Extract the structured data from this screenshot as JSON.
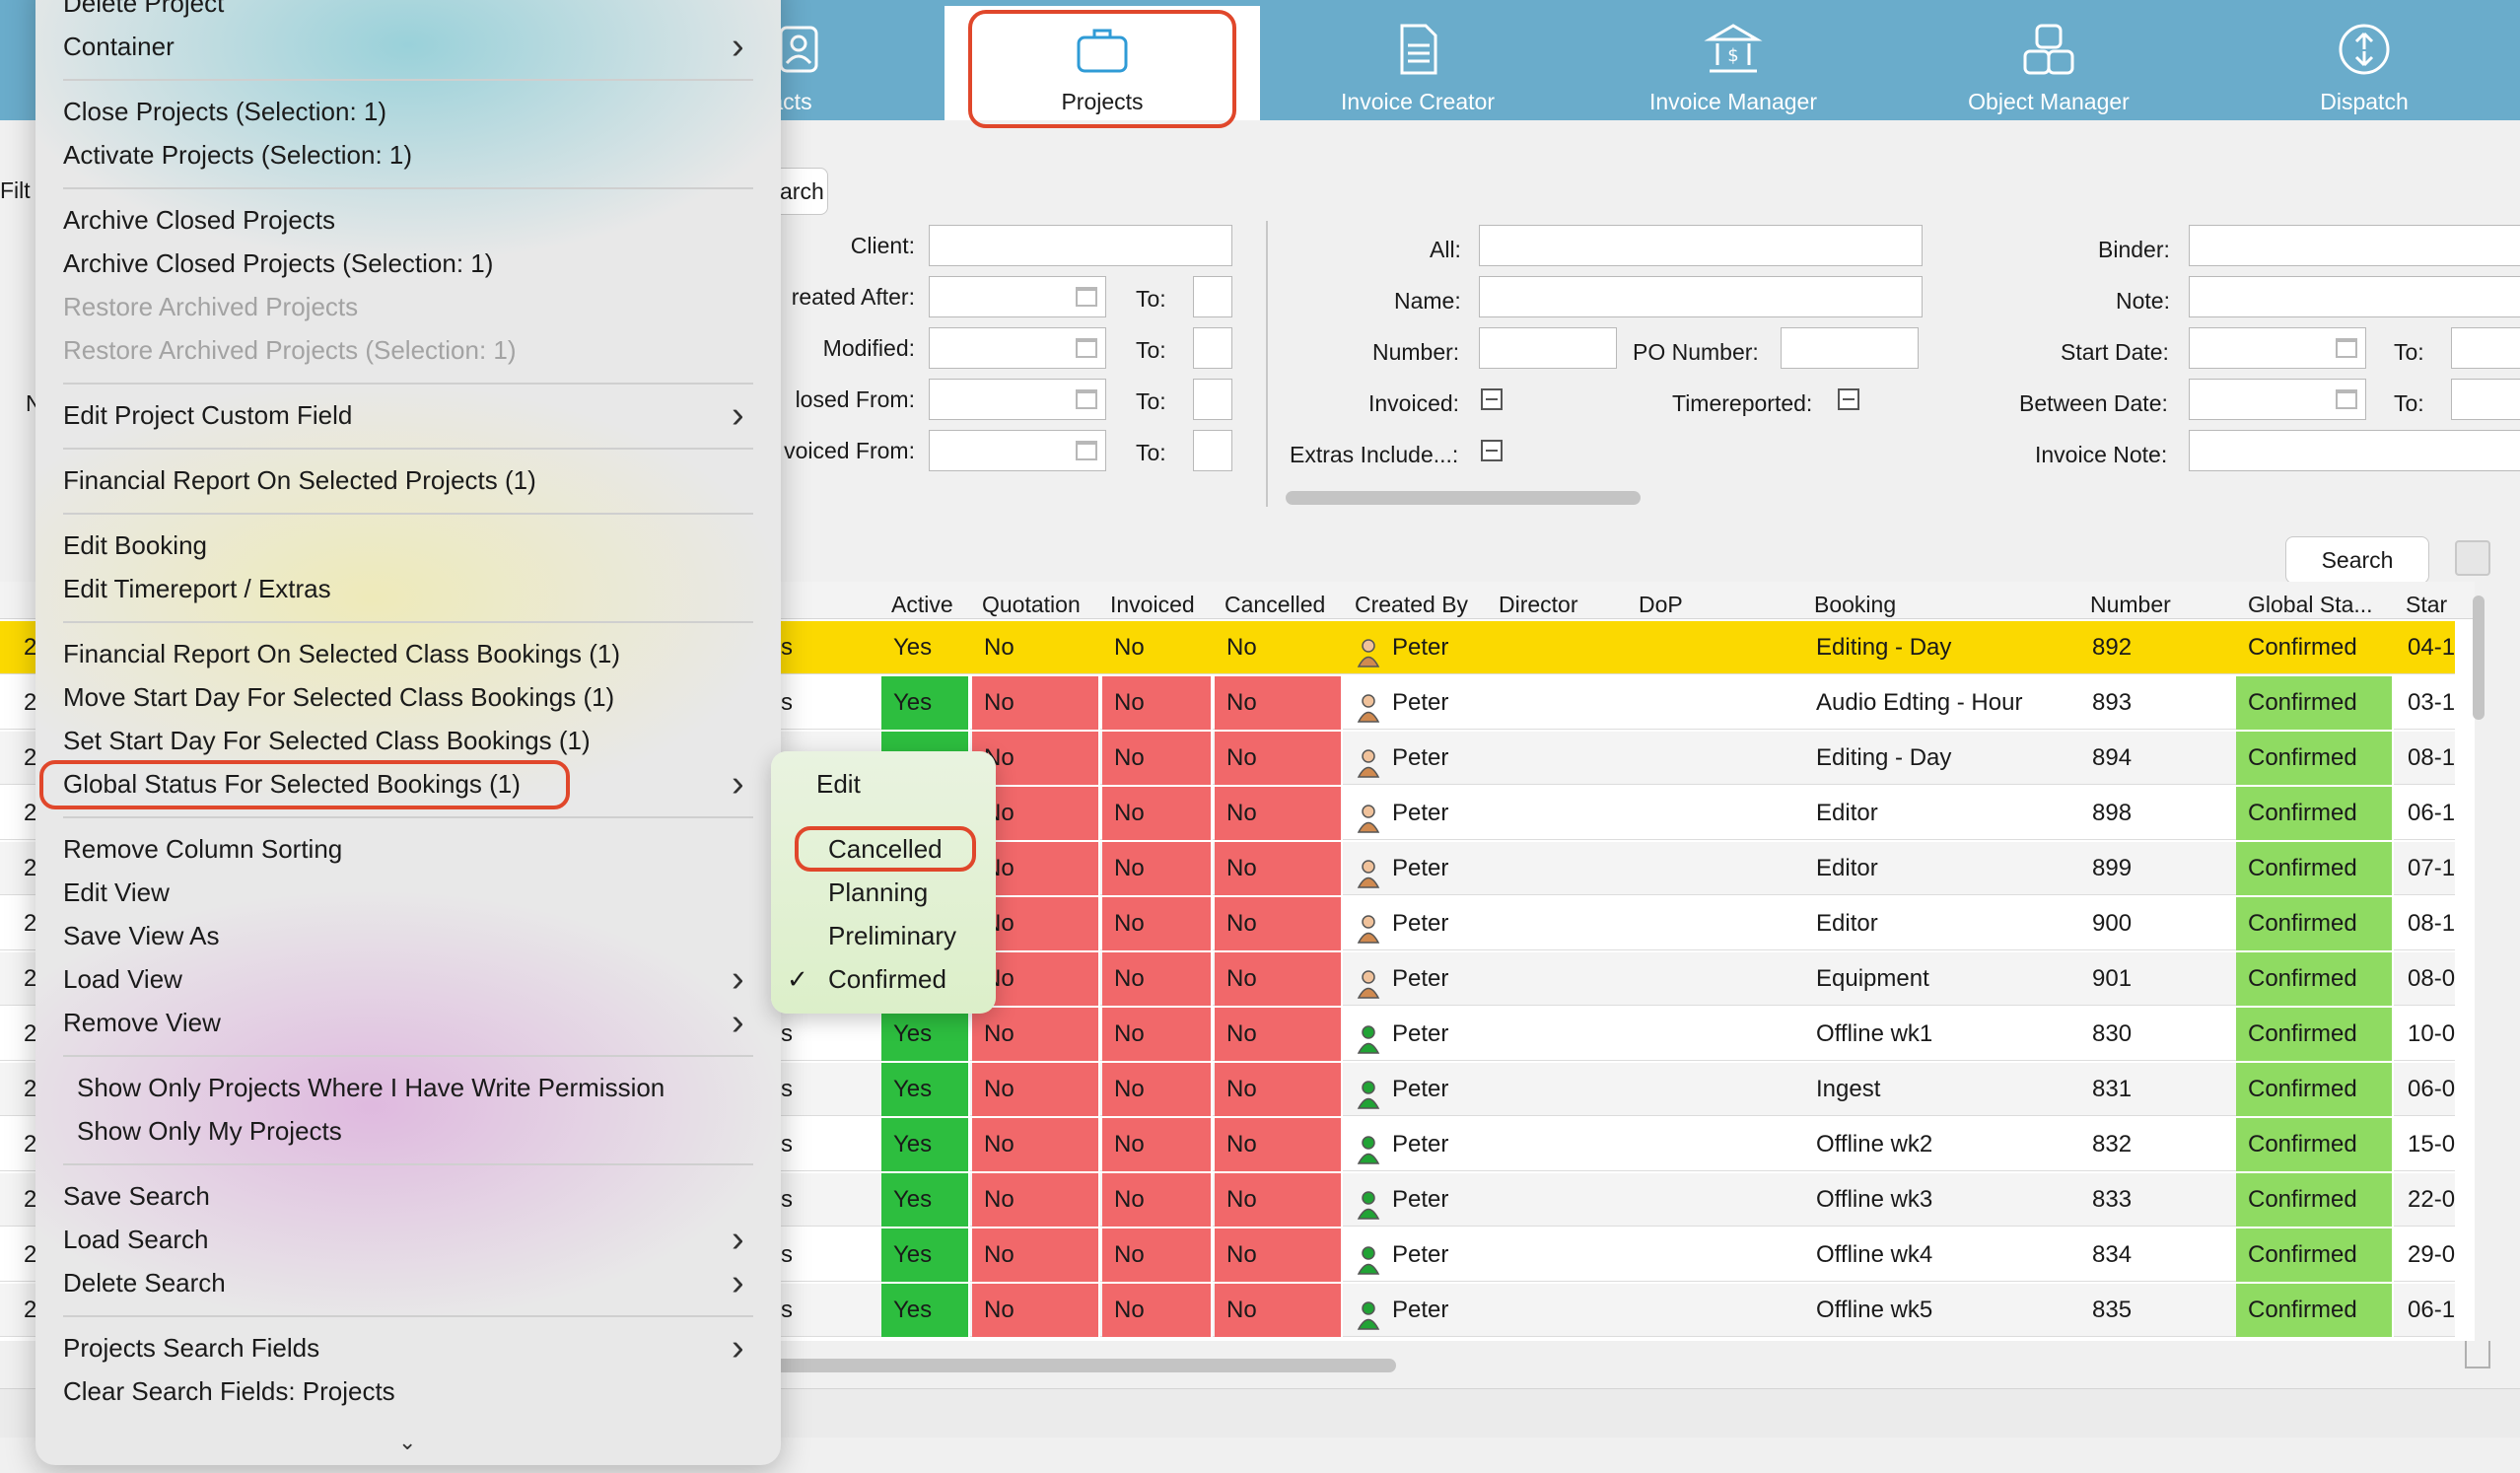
{
  "toolbar": {
    "tabs": [
      {
        "label": "tacts",
        "icon": "contacts-icon"
      },
      {
        "label": "Projects",
        "icon": "briefcase-icon",
        "active": true
      },
      {
        "label": "Invoice Creator",
        "icon": "document-icon"
      },
      {
        "label": "Invoice Manager",
        "icon": "bank-icon"
      },
      {
        "label": "Object Manager",
        "icon": "objects-icon"
      },
      {
        "label": "Dispatch",
        "icon": "dispatch-icon"
      }
    ]
  },
  "filters": {
    "filt_stub": "Filt",
    "arch_stub": "arch",
    "n_stub": "N",
    "left": [
      "Client:",
      "reated After:",
      "Modified:",
      "losed From:",
      "voiced From:"
    ],
    "to": "To:",
    "middle": {
      "all": "All:",
      "name": "Name:",
      "number": "Number:",
      "po_number": "PO Number:",
      "invoiced": "Invoiced:",
      "timereported": "Timereported:",
      "extras": "Extras Include...:"
    },
    "right": {
      "binder": "Binder:",
      "note": "Note:",
      "start_date": "Start Date:",
      "between_date": "Between Date:",
      "invoice_note": "Invoice Note:"
    },
    "search_button": "Search"
  },
  "table": {
    "headers": [
      "Active",
      "Quotation",
      "Invoiced",
      "Cancelled",
      "Created By",
      "Director",
      "DoP",
      "Booking",
      "Number",
      "Global Sta...",
      "Star"
    ],
    "rows": [
      {
        "lead": "2",
        "s": "s",
        "active": "Yes",
        "quotation": "No",
        "invoiced": "No",
        "cancelled": "No",
        "created_by": "Peter",
        "booking": "Editing - Day",
        "number": "892",
        "status": "Confirmed",
        "start": "04-1"
      },
      {
        "lead": "2",
        "s": "s",
        "active": "Yes",
        "quotation": "No",
        "invoiced": "No",
        "cancelled": "No",
        "created_by": "Peter",
        "booking": "Audio Edting - Hour",
        "number": "893",
        "status": "Confirmed",
        "start": "03-1"
      },
      {
        "lead": "2",
        "s": "",
        "active": "",
        "quotation": "No",
        "invoiced": "No",
        "cancelled": "No",
        "created_by": "Peter",
        "booking": "Editing - Day",
        "number": "894",
        "status": "Confirmed",
        "start": "08-1"
      },
      {
        "lead": "2",
        "s": "",
        "active": "",
        "quotation": "No",
        "invoiced": "No",
        "cancelled": "No",
        "created_by": "Peter",
        "booking": "Editor",
        "number": "898",
        "status": "Confirmed",
        "start": "06-1"
      },
      {
        "lead": "2",
        "s": "",
        "active": "",
        "quotation": "No",
        "invoiced": "No",
        "cancelled": "No",
        "created_by": "Peter",
        "booking": "Editor",
        "number": "899",
        "status": "Confirmed",
        "start": "07-1"
      },
      {
        "lead": "2",
        "s": "",
        "active": "",
        "quotation": "No",
        "invoiced": "No",
        "cancelled": "No",
        "created_by": "Peter",
        "booking": "Editor",
        "number": "900",
        "status": "Confirmed",
        "start": "08-1"
      },
      {
        "lead": "2",
        "s": "",
        "active": "",
        "quotation": "No",
        "invoiced": "No",
        "cancelled": "No",
        "created_by": "Peter",
        "booking": "Equipment",
        "number": "901",
        "status": "Confirmed",
        "start": "08-0"
      },
      {
        "lead": "2",
        "s": "s",
        "active": "Yes",
        "quotation": "No",
        "invoiced": "No",
        "cancelled": "No",
        "created_by": "Peter",
        "booking": "Offline wk1",
        "number": "830",
        "status": "Confirmed",
        "start": "10-0"
      },
      {
        "lead": "2",
        "s": "s",
        "active": "Yes",
        "quotation": "No",
        "invoiced": "No",
        "cancelled": "No",
        "created_by": "Peter",
        "booking": "Ingest",
        "number": "831",
        "status": "Confirmed",
        "start": "06-0"
      },
      {
        "lead": "2",
        "s": "s",
        "active": "Yes",
        "quotation": "No",
        "invoiced": "No",
        "cancelled": "No",
        "created_by": "Peter",
        "booking": "Offline wk2",
        "number": "832",
        "status": "Confirmed",
        "start": "15-0"
      },
      {
        "lead": "2",
        "s": "s",
        "active": "Yes",
        "quotation": "No",
        "invoiced": "No",
        "cancelled": "No",
        "created_by": "Peter",
        "booking": "Offline wk3",
        "number": "833",
        "status": "Confirmed",
        "start": "22-0"
      },
      {
        "lead": "2",
        "s": "s",
        "active": "Yes",
        "quotation": "No",
        "invoiced": "No",
        "cancelled": "No",
        "created_by": "Peter",
        "booking": "Offline wk4",
        "number": "834",
        "status": "Confirmed",
        "start": "29-0"
      },
      {
        "lead": "2",
        "s": "s",
        "active": "Yes",
        "quotation": "No",
        "invoiced": "No",
        "cancelled": "No",
        "created_by": "Peter",
        "booking": "Offline wk5",
        "number": "835",
        "status": "Confirmed",
        "start": "06-1"
      }
    ]
  },
  "context_menu": {
    "items": [
      {
        "label": "Delete Project",
        "name": "menu-delete-project"
      },
      {
        "label": "Container",
        "name": "menu-container",
        "submenu": true
      },
      {
        "label": "Close Projects (Selection: 1)",
        "name": "menu-close-projects"
      },
      {
        "label": "Activate Projects (Selection: 1)",
        "name": "menu-activate-projects"
      },
      {
        "label": "Archive Closed Projects",
        "name": "menu-archive-closed"
      },
      {
        "label": "Archive Closed Projects (Selection: 1)",
        "name": "menu-archive-closed-selection"
      },
      {
        "label": "Restore Archived Projects",
        "name": "menu-restore-archived",
        "disabled": true
      },
      {
        "label": "Restore Archived Projects (Selection: 1)",
        "name": "menu-restore-archived-selection",
        "disabled": true
      },
      {
        "label": "Edit Project Custom Field",
        "name": "menu-edit-custom-field",
        "submenu": true
      },
      {
        "label": "Financial Report On Selected Projects (1)",
        "name": "menu-financial-report-projects"
      },
      {
        "label": "Edit Booking",
        "name": "menu-edit-booking"
      },
      {
        "label": "Edit Timereport / Extras",
        "name": "menu-edit-timereport"
      },
      {
        "label": "Financial Report On Selected Class Bookings (1)",
        "name": "menu-financial-report-bookings"
      },
      {
        "label": "Move Start Day For Selected Class Bookings (1)",
        "name": "menu-move-start-day"
      },
      {
        "label": "Set Start Day For Selected Class Bookings (1)",
        "name": "menu-set-start-day"
      },
      {
        "label": "Global Status For Selected Bookings (1)",
        "name": "menu-global-status",
        "submenu": true
      },
      {
        "label": "Remove Column Sorting",
        "name": "menu-remove-column-sorting"
      },
      {
        "label": "Edit View",
        "name": "menu-edit-view"
      },
      {
        "label": "Save View As",
        "name": "menu-save-view-as"
      },
      {
        "label": "Load View",
        "name": "menu-load-view",
        "submenu": true
      },
      {
        "label": "Remove View",
        "name": "menu-remove-view",
        "submenu": true
      },
      {
        "label": "Show Only Projects Where I Have Write Permission",
        "name": "menu-show-write-permission"
      },
      {
        "label": "Show Only My Projects",
        "name": "menu-show-my-projects"
      },
      {
        "label": "Save Search",
        "name": "menu-save-search"
      },
      {
        "label": "Load Search",
        "name": "menu-load-search",
        "submenu": true
      },
      {
        "label": "Delete Search",
        "name": "menu-delete-search",
        "submenu": true
      },
      {
        "label": "Projects Search Fields",
        "name": "menu-projects-search-fields",
        "submenu": true
      },
      {
        "label": "Clear Search Fields: Projects",
        "name": "menu-clear-search-fields"
      }
    ]
  },
  "submenu": {
    "edit": "Edit",
    "options": [
      "Cancelled",
      "Planning",
      "Preliminary",
      "Confirmed"
    ],
    "checked": "Confirmed",
    "check_mark": "✓"
  },
  "colors": {
    "toolbar": "#6aaccb",
    "selected_row": "#fbd900",
    "active_yes": "#2dbe3f",
    "no_cell": "#f1686a",
    "confirmed": "#8fdb62",
    "highlight_ring": "#e0472b"
  }
}
